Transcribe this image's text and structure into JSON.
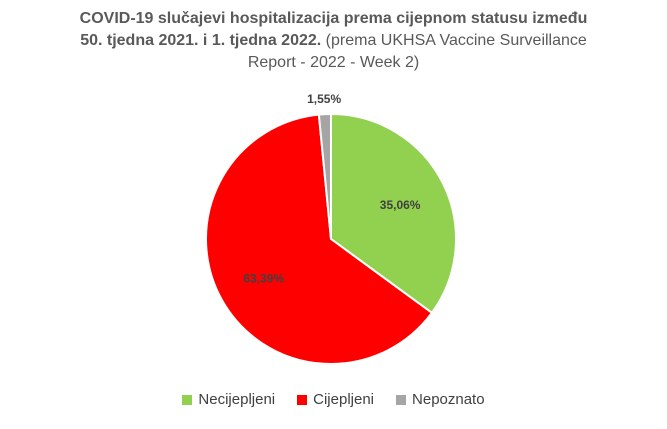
{
  "title": {
    "line1": "COVID-19 slučajevi hospitalizacija prema cijepnom statusu između",
    "line2_bold": "50. tjedna 2021. i 1. tjedna 2022.",
    "line2_rest": "(prema UKHSA Vaccine Surveillance",
    "line3": "Report - 2022 - Week 2)"
  },
  "chart_data": {
    "type": "pie",
    "categories": [
      "Necijepljeni",
      "Cijepljeni",
      "Nepoznato"
    ],
    "values": [
      35.06,
      63.39,
      1.55
    ],
    "labels": [
      "35,06%",
      "63,39%",
      "1,55%"
    ],
    "colors": [
      "#92d050",
      "#ff0000",
      "#a5a5a5"
    ],
    "legend_position": "bottom"
  }
}
